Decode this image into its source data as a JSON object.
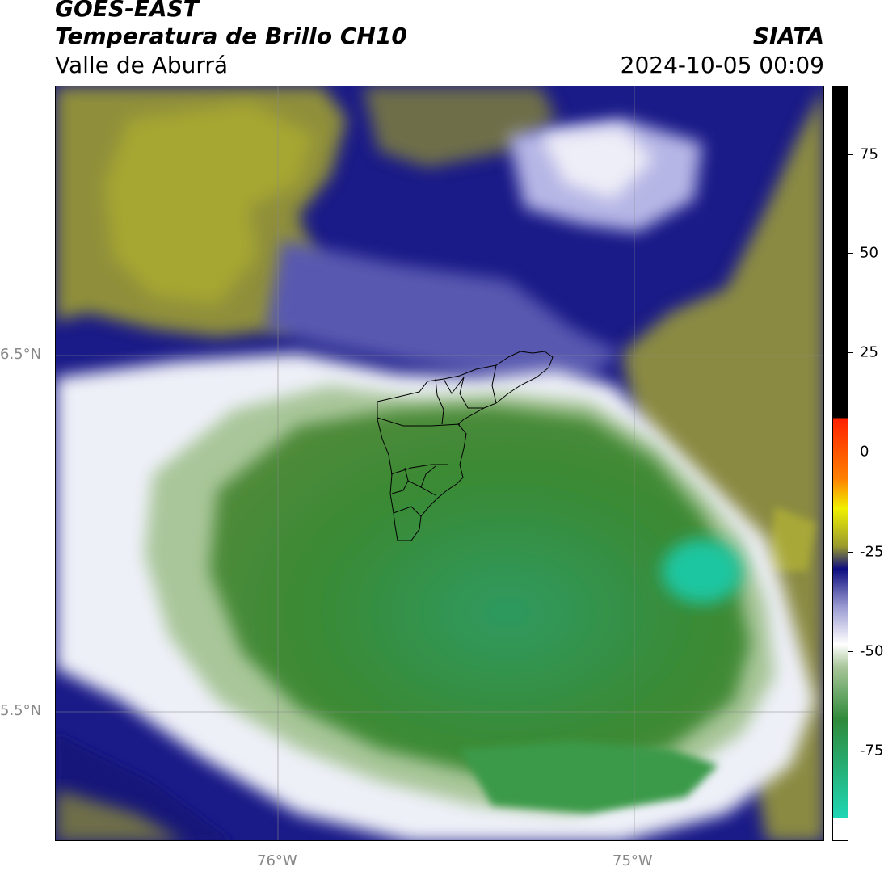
{
  "header": {
    "satellite": "GOES-EAST",
    "product": "Temperatura de Brillo CH10",
    "region": "Valle de Aburrá",
    "agency": "SIATA",
    "timestamp": "2024-10-05 00:09"
  },
  "map": {
    "lat_labels": [
      "6.5°N",
      "5.5°N"
    ],
    "lon_labels": [
      "76°W",
      "75°W"
    ]
  },
  "colorbar": {
    "ticks": [
      "75",
      "50",
      "25",
      "0",
      "-25",
      "-50",
      "-75"
    ],
    "colors": {
      "cold_cyan": "#1fd6b4",
      "green": "#2f8a3a",
      "light_green": "#a9c69a",
      "white": "#ffffff",
      "lavender": "#9a9ad2",
      "navy": "#0d0d80",
      "olive": "#9a9a2e",
      "yellow": "#f0f000",
      "orange": "#ff8000",
      "red": "#ff2000",
      "black": "#000000"
    }
  }
}
